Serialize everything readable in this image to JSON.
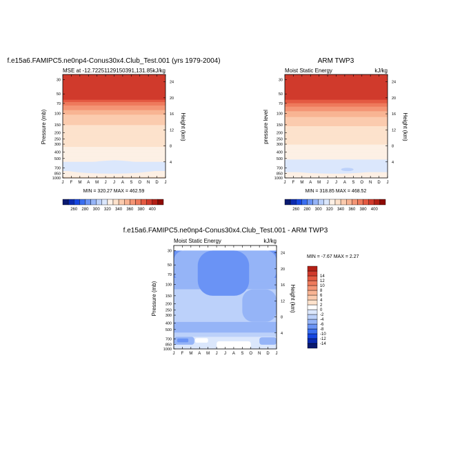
{
  "colors": {
    "full_levels": [
      "#0a1a70",
      "#0b2ab0",
      "#1646e0",
      "#3a6ef0",
      "#6a93f5",
      "#95b4f7",
      "#bcd1fa",
      "#dbe7fc",
      "#fdf0e5",
      "#fde2cc",
      "#fbcbae",
      "#f8b493",
      "#f49575",
      "#ee7a5c",
      "#e45a42",
      "#d03a2c",
      "#b32016",
      "#8e0b05"
    ],
    "diff_levels": [
      "#0a1a70",
      "#0b2ab0",
      "#1646e0",
      "#3a6ef0",
      "#6a93f5",
      "#95b4f7",
      "#bcd1fa",
      "#dbe7fc",
      "#ffffff",
      "#fde2cc",
      "#fbcbae",
      "#f8b493",
      "#f49575",
      "#ee7a5c",
      "#e45a42",
      "#d03a2c",
      "#b32016"
    ]
  },
  "chart_data": [
    {
      "type": "heatmap",
      "title": "f.e15a6.FAMIPC5.ne0np4-Conus30x4.Club_Test.001 (yrs 1979-2004)",
      "left_string": "MSE at -12.72251129150391,131.85",
      "right_string": "kJ/kg",
      "ylabel": "Pressure (mb)",
      "y2label": "Height (km)",
      "minmax": "MIN = 320.27 MAX = 462.59",
      "x_ticks": [
        "J",
        "F",
        "M",
        "A",
        "M",
        "J",
        "J",
        "A",
        "S",
        "O",
        "N",
        "D",
        "J"
      ],
      "y_ticks": [
        30,
        50,
        70,
        100,
        150,
        200,
        250,
        300,
        400,
        500,
        700,
        850,
        1000
      ],
      "y2_ticks": [
        24,
        20,
        16,
        12,
        8,
        4
      ],
      "levels": [
        260,
        270,
        280,
        290,
        300,
        310,
        320,
        330,
        340,
        350,
        360,
        370,
        380,
        390,
        400
      ],
      "profile": [
        {
          "p": 30,
          "v": 462
        },
        {
          "p": 50,
          "v": 420
        },
        {
          "p": 70,
          "v": 385
        },
        {
          "p": 100,
          "v": 362
        },
        {
          "p": 150,
          "v": 350
        },
        {
          "p": 200,
          "v": 345
        },
        {
          "p": 250,
          "v": 342
        },
        {
          "p": 300,
          "v": 341
        },
        {
          "p": 400,
          "v": 338
        },
        {
          "p": 500,
          "v": 333
        },
        {
          "p": 600,
          "v": 329
        },
        {
          "p": 700,
          "v": 326
        },
        {
          "p": 850,
          "v": 332
        },
        {
          "p": 1000,
          "v": 342
        }
      ]
    },
    {
      "type": "heatmap",
      "title": "ARM TWP3",
      "left_string": "Moist Static Energy",
      "right_string": "kJ/kg",
      "ylabel": "pressure level",
      "y2label": "Height (km)",
      "minmax": "MIN = 318.85 MAX = 468.52",
      "x_ticks": [
        "J",
        "F",
        "M",
        "A",
        "M",
        "J",
        "J",
        "A",
        "S",
        "O",
        "N",
        "D",
        "J"
      ],
      "y_ticks": [
        30,
        50,
        70,
        100,
        150,
        200,
        250,
        300,
        400,
        500,
        700,
        850,
        1000
      ],
      "y2_ticks": [
        24,
        20,
        16,
        12,
        8,
        4
      ],
      "levels": [
        260,
        270,
        280,
        290,
        300,
        310,
        320,
        330,
        340,
        350,
        360,
        370,
        380,
        390,
        400
      ],
      "profile": [
        {
          "p": 30,
          "v": 466
        },
        {
          "p": 50,
          "v": 425
        },
        {
          "p": 70,
          "v": 388
        },
        {
          "p": 100,
          "v": 364
        },
        {
          "p": 150,
          "v": 351
        },
        {
          "p": 200,
          "v": 346
        },
        {
          "p": 250,
          "v": 342
        },
        {
          "p": 300,
          "v": 340
        },
        {
          "p": 400,
          "v": 336
        },
        {
          "p": 500,
          "v": 331
        },
        {
          "p": 600,
          "v": 327
        },
        {
          "p": 700,
          "v": 323
        },
        {
          "p": 850,
          "v": 331
        },
        {
          "p": 1000,
          "v": 341
        }
      ]
    },
    {
      "type": "heatmap",
      "title": "f.e15a6.FAMIPC5.ne0np4-Conus30x4.Club_Test.001 - ARM TWP3",
      "left_string": "Moist Static Energy",
      "right_string": "kJ/kg",
      "ylabel": "Pressure (mb)",
      "y2label": "Height (km)",
      "minmax": "MIN = -7.67 MAX =  2.27",
      "x_ticks": [
        "J",
        "F",
        "M",
        "A",
        "M",
        "J",
        "J",
        "A",
        "S",
        "O",
        "N",
        "D",
        "J"
      ],
      "y_ticks": [
        30,
        50,
        70,
        100,
        150,
        200,
        250,
        300,
        400,
        500,
        700,
        850,
        1000
      ],
      "y2_ticks": [
        24,
        20,
        16,
        12,
        8,
        4
      ],
      "levels": [
        -14,
        -12,
        -10,
        -8,
        -6,
        -4,
        -2,
        0,
        2,
        4,
        6,
        8,
        10,
        12,
        14
      ],
      "bands": [
        {
          "p_top": 30,
          "p_bot": 80,
          "class": 4
        },
        {
          "p_top": 80,
          "p_bot": 120,
          "class": 5
        },
        {
          "p_top": 120,
          "p_bot": 380,
          "class": 6
        },
        {
          "p_top": 380,
          "p_bot": 560,
          "class": 5
        },
        {
          "p_top": 560,
          "p_bot": 650,
          "class": 6
        },
        {
          "p_top": 650,
          "p_bot": 1000,
          "class": 7
        }
      ],
      "patches": [
        {
          "m0": 0.0,
          "m1": 12.0,
          "p_top": 30,
          "p_bot": 90,
          "class": 5
        },
        {
          "m0": 2.8,
          "m1": 8.8,
          "p_top": 30,
          "p_bot": 150,
          "class": 4
        },
        {
          "m0": 0.0,
          "m1": 12.0,
          "p_top": 230,
          "p_bot": 300,
          "class": 6
        },
        {
          "m0": 8.0,
          "m1": 12.0,
          "p_top": 120,
          "p_bot": 380,
          "class": 5
        },
        {
          "m0": 0.0,
          "m1": 2.4,
          "p_top": 650,
          "p_bot": 860,
          "class": 5
        },
        {
          "m0": 0.4,
          "m1": 1.7,
          "p_top": 690,
          "p_bot": 790,
          "class": 4
        },
        {
          "m0": 10.0,
          "m1": 12.0,
          "p_top": 660,
          "p_bot": 860,
          "class": 5
        },
        {
          "m0": 5.0,
          "m1": 9.0,
          "p_top": 760,
          "p_bot": 1000,
          "class": 8
        },
        {
          "m0": 2.5,
          "m1": 4.0,
          "p_top": 680,
          "p_bot": 800,
          "class": 8
        }
      ]
    }
  ]
}
